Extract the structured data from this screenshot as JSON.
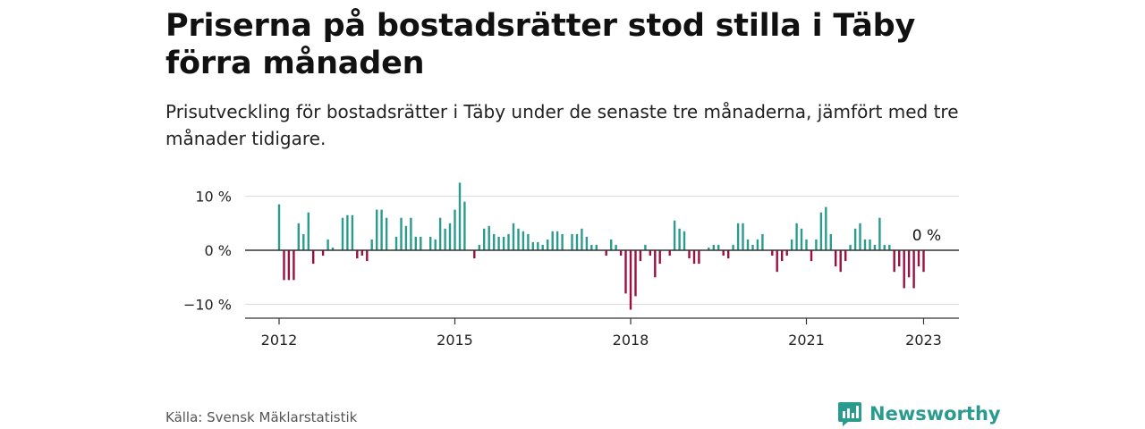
{
  "header": {
    "title": "Priserna på bostadsrätter stod stilla i Täby förra månaden",
    "subtitle": "Prisutveckling för bostadsrätter i Täby under de senaste tre månaderna, jämfört med tre månader tidigare."
  },
  "footer": {
    "source": "Källa: Svensk Mäklarstatistik",
    "brand": "Newsworthy"
  },
  "colors": {
    "positive": "#2b9a8f",
    "negative": "#9b1040",
    "grid": "#dddddd",
    "axis": "#333333"
  },
  "chart_data": {
    "type": "bar",
    "ylim": [
      -12,
      12
    ],
    "yticks": [
      {
        "value": 10,
        "label": "10 %"
      },
      {
        "value": 0,
        "label": "0 %"
      },
      {
        "value": -10,
        "label": "−10 %"
      }
    ],
    "xticks": [
      {
        "value": "2012-01",
        "label": "2012"
      },
      {
        "value": "2015-01",
        "label": "2015"
      },
      {
        "value": "2018-01",
        "label": "2018"
      },
      {
        "value": "2021-01",
        "label": "2021"
      },
      {
        "value": "2023-01",
        "label": "2023"
      }
    ],
    "start": "2012-01",
    "values": [
      8.5,
      -5.5,
      -5.5,
      -5.5,
      5,
      3,
      7,
      -2.5,
      0,
      -1,
      2,
      0.5,
      0,
      6,
      6.5,
      6.5,
      -1.5,
      -1,
      -2,
      2,
      7.5,
      7.5,
      6,
      0,
      2.5,
      6,
      4.5,
      6,
      2.5,
      2.5,
      0,
      2.5,
      2,
      6,
      4,
      5,
      7.5,
      12.5,
      9,
      0,
      -1.5,
      1,
      4,
      4.5,
      3,
      2.5,
      2.5,
      3,
      5,
      4,
      3.5,
      3,
      1.5,
      1.5,
      1,
      2,
      3.5,
      3.5,
      3,
      0,
      3,
      3,
      4,
      2.5,
      1,
      1,
      0,
      -1,
      2,
      1,
      -1,
      -8,
      -11,
      -8.5,
      -2,
      1,
      -1,
      -5,
      -2.5,
      0,
      -1,
      5.5,
      4,
      3.5,
      -1.5,
      -2.5,
      -2.5,
      0,
      0.5,
      1,
      1,
      -1,
      -1.5,
      1,
      5,
      5,
      2,
      1,
      2,
      3,
      0,
      -1,
      -4,
      -2,
      -1,
      2,
      5,
      4,
      2,
      -2,
      2,
      7,
      8,
      3,
      -3,
      -4,
      -2,
      1,
      4,
      5,
      2,
      2,
      1,
      6,
      1,
      1,
      -4,
      -3,
      -7,
      -5,
      -7,
      -3,
      -4,
      0
    ],
    "last_label": "0 %"
  }
}
